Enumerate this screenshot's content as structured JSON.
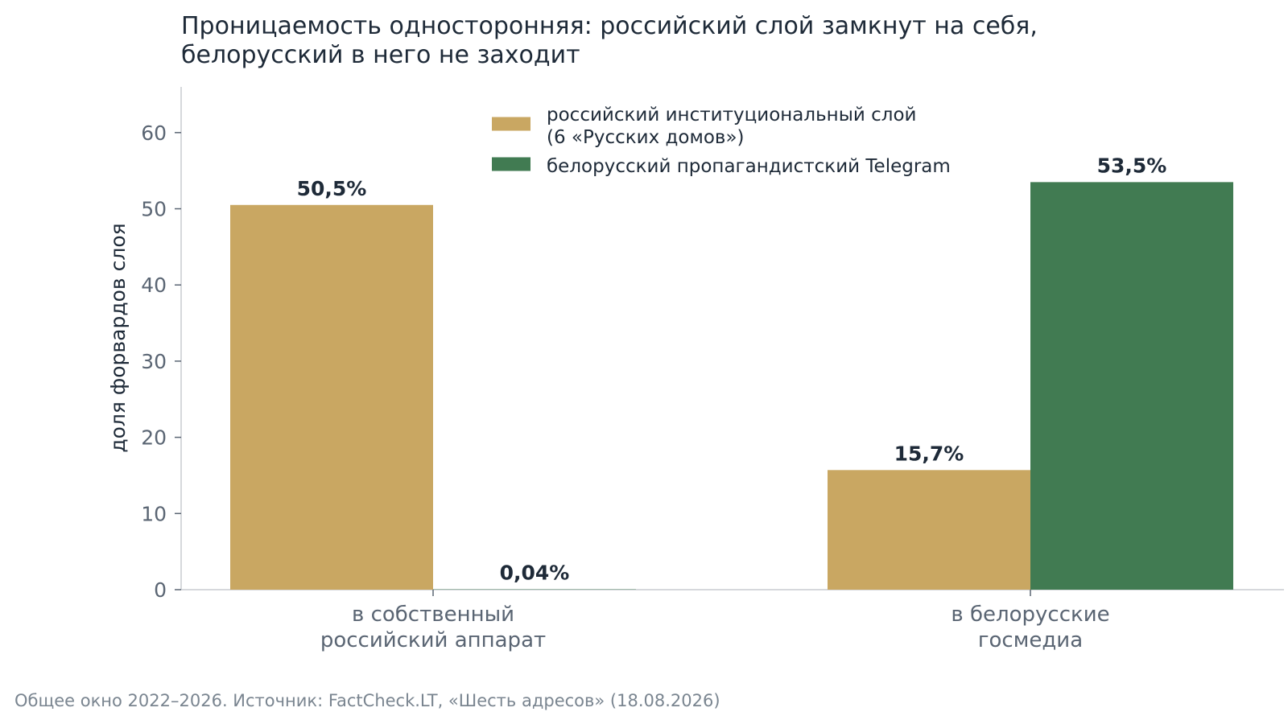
{
  "chart_data": {
    "type": "bar",
    "title_lines": [
      "Проницаемость односторонняя: российский слой замкнут на себя,",
      "белорусский в него не заходит"
    ],
    "ylabel": "доля форвардов слоя",
    "xlabel": "",
    "ylim": [
      0,
      66
    ],
    "yticks": [
      0,
      10,
      20,
      30,
      40,
      50,
      60
    ],
    "categories": [
      [
        "в собственный",
        "российский аппарат"
      ],
      [
        "в белорусские",
        "госмедиа"
      ]
    ],
    "series": [
      {
        "name_lines": [
          "российский институциональный слой",
          "(6 «Русских домов»)"
        ],
        "color": "#c9a762",
        "values": [
          50.5,
          15.7
        ],
        "labels": [
          "50,5%",
          "15,7%"
        ]
      },
      {
        "name_lines": [
          "белорусский пропагандистский Telegram"
        ],
        "color": "#417b52",
        "values": [
          0.04,
          53.5
        ],
        "labels": [
          "0,04%",
          "53,5%"
        ]
      }
    ],
    "grid": false,
    "legend_position": "top-center",
    "source_note": "Общее окно 2022–2026. Источник: FactCheck.LT, «Шесть адресов» (18.08.2026)"
  }
}
